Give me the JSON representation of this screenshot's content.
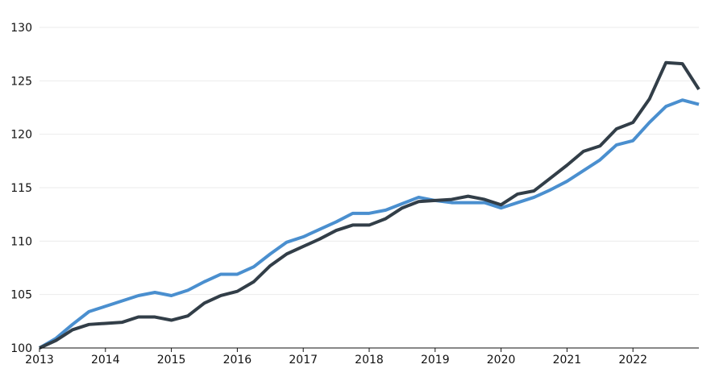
{
  "chart_data": {
    "type": "line",
    "title": "",
    "xlabel": "",
    "ylabel": "",
    "xlim": [
      2013.0,
      2023.0
    ],
    "ylim": [
      100,
      130
    ],
    "x_ticks": [
      2013,
      2014,
      2015,
      2016,
      2017,
      2018,
      2019,
      2020,
      2021,
      2022
    ],
    "x_tick_labels": [
      "2013",
      "2014",
      "2015",
      "2016",
      "2017",
      "2018",
      "2019",
      "2020",
      "2021",
      "2022"
    ],
    "y_ticks": [
      100,
      105,
      110,
      115,
      120,
      125,
      130
    ],
    "y_tick_labels": [
      "100",
      "105",
      "110",
      "115",
      "120",
      "125",
      "130"
    ],
    "grid": "horizontal",
    "legend": "none",
    "x": [
      2013.0,
      2013.25,
      2013.5,
      2013.75,
      2014.0,
      2014.25,
      2014.5,
      2014.75,
      2015.0,
      2015.25,
      2015.5,
      2015.75,
      2016.0,
      2016.25,
      2016.5,
      2016.75,
      2017.0,
      2017.25,
      2017.5,
      2017.75,
      2018.0,
      2018.25,
      2018.5,
      2018.75,
      2019.0,
      2019.25,
      2019.5,
      2019.75,
      2020.0,
      2020.25,
      2020.5,
      2020.75,
      2021.0,
      2021.25,
      2021.5,
      2021.75,
      2022.0,
      2022.25,
      2022.5,
      2022.75,
      2023.0
    ],
    "series": [
      {
        "color": "#4a8fcf",
        "values": [
          100.0,
          100.9,
          102.2,
          103.4,
          103.9,
          104.4,
          104.9,
          105.2,
          104.9,
          105.4,
          106.2,
          106.9,
          106.9,
          107.6,
          108.8,
          109.9,
          110.4,
          111.1,
          111.8,
          112.6,
          112.6,
          112.9,
          113.5,
          114.1,
          113.8,
          113.6,
          113.6,
          113.6,
          113.1,
          113.6,
          114.1,
          114.8,
          115.6,
          116.6,
          117.6,
          119.0,
          119.4,
          121.1,
          122.6,
          123.2,
          122.8
        ]
      },
      {
        "color": "#323e48",
        "values": [
          100.0,
          100.7,
          101.7,
          102.2,
          102.3,
          102.4,
          102.9,
          102.9,
          102.6,
          103.0,
          104.2,
          104.9,
          105.3,
          106.2,
          107.7,
          108.8,
          109.5,
          110.2,
          111.0,
          111.5,
          111.5,
          112.1,
          113.1,
          113.7,
          113.8,
          113.9,
          114.2,
          113.9,
          113.4,
          114.4,
          114.7,
          115.9,
          117.1,
          118.4,
          118.9,
          120.5,
          121.1,
          123.3,
          126.7,
          126.6,
          124.2
        ]
      }
    ]
  }
}
